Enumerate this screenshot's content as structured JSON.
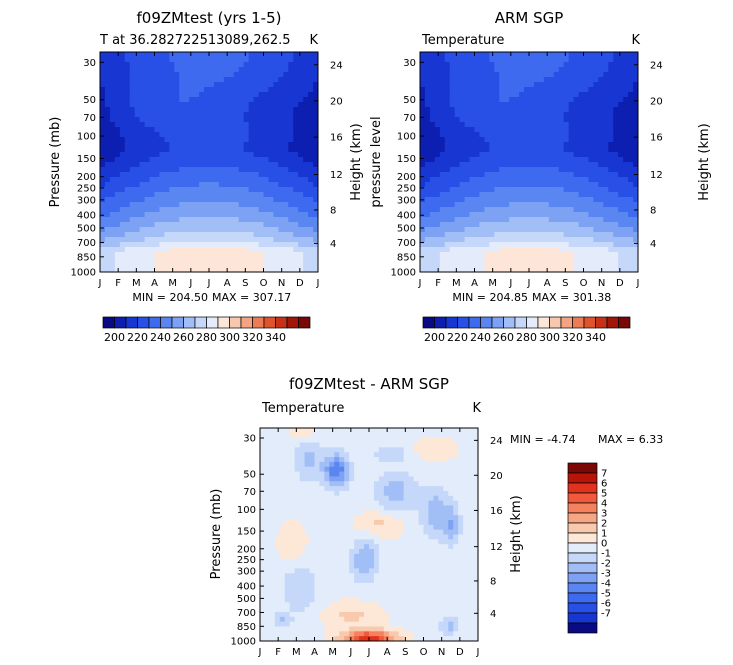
{
  "chart_data": [
    {
      "type": "heatmap",
      "id": "model",
      "title": "f09ZMtest (yrs 1-5)",
      "subtitle_left": "T at 36.282722513089,262.5",
      "subtitle_right": "K",
      "ylabel": "Pressure (mb)",
      "ylabel_right": "Height (km)",
      "x_ticks": [
        "J",
        "F",
        "M",
        "A",
        "M",
        "J",
        "J",
        "A",
        "S",
        "O",
        "N",
        "D",
        "J"
      ],
      "y_ticks": [
        "30",
        "50",
        "70",
        "100",
        "150",
        "200",
        "250",
        "300",
        "400",
        "500",
        "700",
        "850",
        "1000"
      ],
      "height_ticks": [
        "24",
        "20",
        "16",
        "12",
        "8",
        "4"
      ],
      "min_label": "MIN = 204.50",
      "max_label": "MAX = 307.17",
      "min": 204.5,
      "max": 307.17,
      "colorbar_labels": [
        "200",
        "220",
        "240",
        "260",
        "280",
        "300",
        "320",
        "340"
      ],
      "colorbar_range": [
        190,
        350
      ]
    },
    {
      "type": "heatmap",
      "id": "obs",
      "title": "ARM SGP",
      "subtitle_left": "Temperature",
      "subtitle_right": "K",
      "ylabel": "pressure level",
      "ylabel_right": "Height (km)",
      "x_ticks": [
        "J",
        "F",
        "M",
        "A",
        "M",
        "J",
        "J",
        "A",
        "S",
        "O",
        "N",
        "D",
        "J"
      ],
      "y_ticks": [
        "30",
        "50",
        "70",
        "100",
        "150",
        "200",
        "250",
        "300",
        "400",
        "500",
        "700",
        "850",
        "1000"
      ],
      "height_ticks": [
        "24",
        "20",
        "16",
        "12",
        "8",
        "4"
      ],
      "min_label": "MIN = 204.85",
      "max_label": "MAX = 301.38",
      "min": 204.85,
      "max": 301.38,
      "colorbar_labels": [
        "200",
        "220",
        "240",
        "260",
        "280",
        "300",
        "320",
        "340"
      ],
      "colorbar_range": [
        190,
        350
      ]
    },
    {
      "type": "heatmap",
      "id": "diff",
      "title": "f09ZMtest - ARM SGP",
      "subtitle_left": "Temperature",
      "subtitle_right": "K",
      "ylabel": "Pressure (mb)",
      "ylabel_right": "Height (km)",
      "x_ticks": [
        "J",
        "F",
        "M",
        "A",
        "M",
        "J",
        "J",
        "A",
        "S",
        "O",
        "N",
        "D",
        "J"
      ],
      "y_ticks": [
        "30",
        "50",
        "70",
        "100",
        "150",
        "200",
        "250",
        "300",
        "400",
        "500",
        "700",
        "850",
        "1000"
      ],
      "height_ticks": [
        "24",
        "20",
        "16",
        "12",
        "8",
        "4"
      ],
      "min_label": "MIN =  -4.74",
      "max_label": "MAX =    6.33",
      "min": -4.74,
      "max": 6.33,
      "colorbar_labels": [
        "7",
        "6",
        "5",
        "4",
        "3",
        "2",
        "1",
        "0",
        "-1",
        "-2",
        "-3",
        "-4",
        "-5",
        "-6",
        "-7"
      ]
    }
  ]
}
